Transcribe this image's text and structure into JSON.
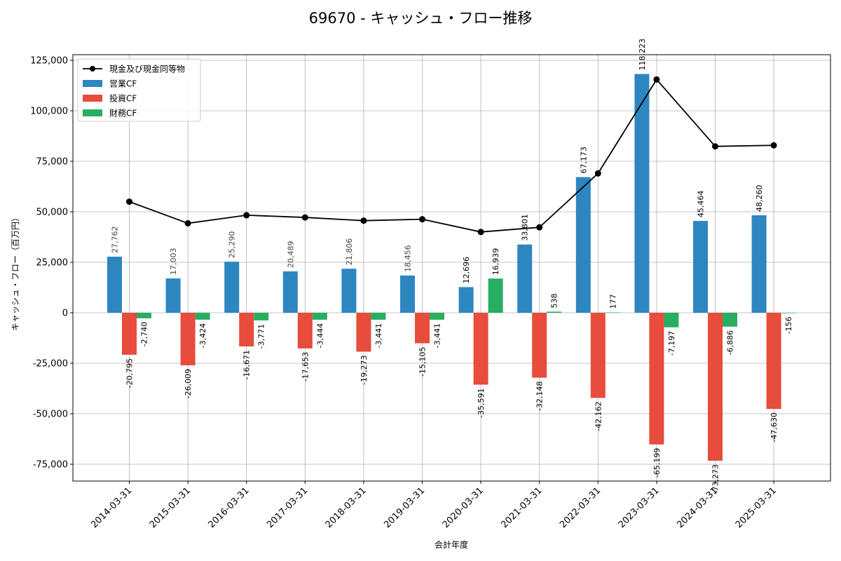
{
  "chart_data": {
    "type": "bar",
    "title": "69670 - キャッシュ・フロー推移",
    "xlabel": "会計年度",
    "ylabel": "キャッシュ・フロー（百万円）",
    "ylim": [
      -83750,
      126250
    ],
    "yticks": [
      -75000,
      -50000,
      -25000,
      0,
      25000,
      50000,
      75000,
      100000,
      125000
    ],
    "ytick_labels": [
      "-75,000",
      "-50,000",
      "-25,000",
      "0",
      "25,000",
      "50,000",
      "75,000",
      "100,000",
      "125,000"
    ],
    "grid": true,
    "legend_position": "top-left",
    "categories": [
      "2014-03-31",
      "2015-03-31",
      "2016-03-31",
      "2017-03-31",
      "2018-03-31",
      "2019-03-31",
      "2020-03-31",
      "2021-03-31",
      "2022-03-31",
      "2023-03-31",
      "2024-03-31",
      "2025-03-31"
    ],
    "series": [
      {
        "name": "営業CF",
        "kind": "bar",
        "color": "#2e86c1",
        "values": [
          27762,
          17003,
          25290,
          20489,
          21806,
          18456,
          12696,
          33801,
          67173,
          118223,
          45464,
          48260
        ],
        "labels": [
          "27,762",
          "17,003",
          "25,290",
          "20,489",
          "21,806",
          "18,456",
          "12,696",
          "33,801",
          "67,173",
          "118,223",
          "45,464",
          "48,260"
        ]
      },
      {
        "name": "投資CF",
        "kind": "bar",
        "color": "#e74c3c",
        "values": [
          -20795,
          -26009,
          -16671,
          -17653,
          -19273,
          -15105,
          -35591,
          -32148,
          -42162,
          -65199,
          -73273,
          -47630
        ],
        "labels": [
          "-20,795",
          "-26,009",
          "-16,671",
          "-17,653",
          "-19,273",
          "-15,105",
          "-35,591",
          "-32,148",
          "-42,162",
          "-65,199",
          "-73,273",
          "-47,630"
        ]
      },
      {
        "name": "財務CF",
        "kind": "bar",
        "color": "#27ae60",
        "values": [
          -2740,
          -3424,
          -3771,
          -3444,
          -3441,
          -3441,
          16939,
          538,
          177,
          -7197,
          -6886,
          -156
        ],
        "labels": [
          "-2,740",
          "-3,424",
          "-3,771",
          "-3,444",
          "-3,441",
          "-3,441",
          "16,939",
          "538",
          "177",
          "-7,197",
          "-6,886",
          "-156"
        ]
      },
      {
        "name": "現金及び現金同等物",
        "kind": "line",
        "color": "#000000",
        "values": [
          55000,
          44300,
          48300,
          47200,
          45600,
          46300,
          40000,
          42300,
          69000,
          115500,
          82400,
          82900
        ]
      }
    ]
  }
}
